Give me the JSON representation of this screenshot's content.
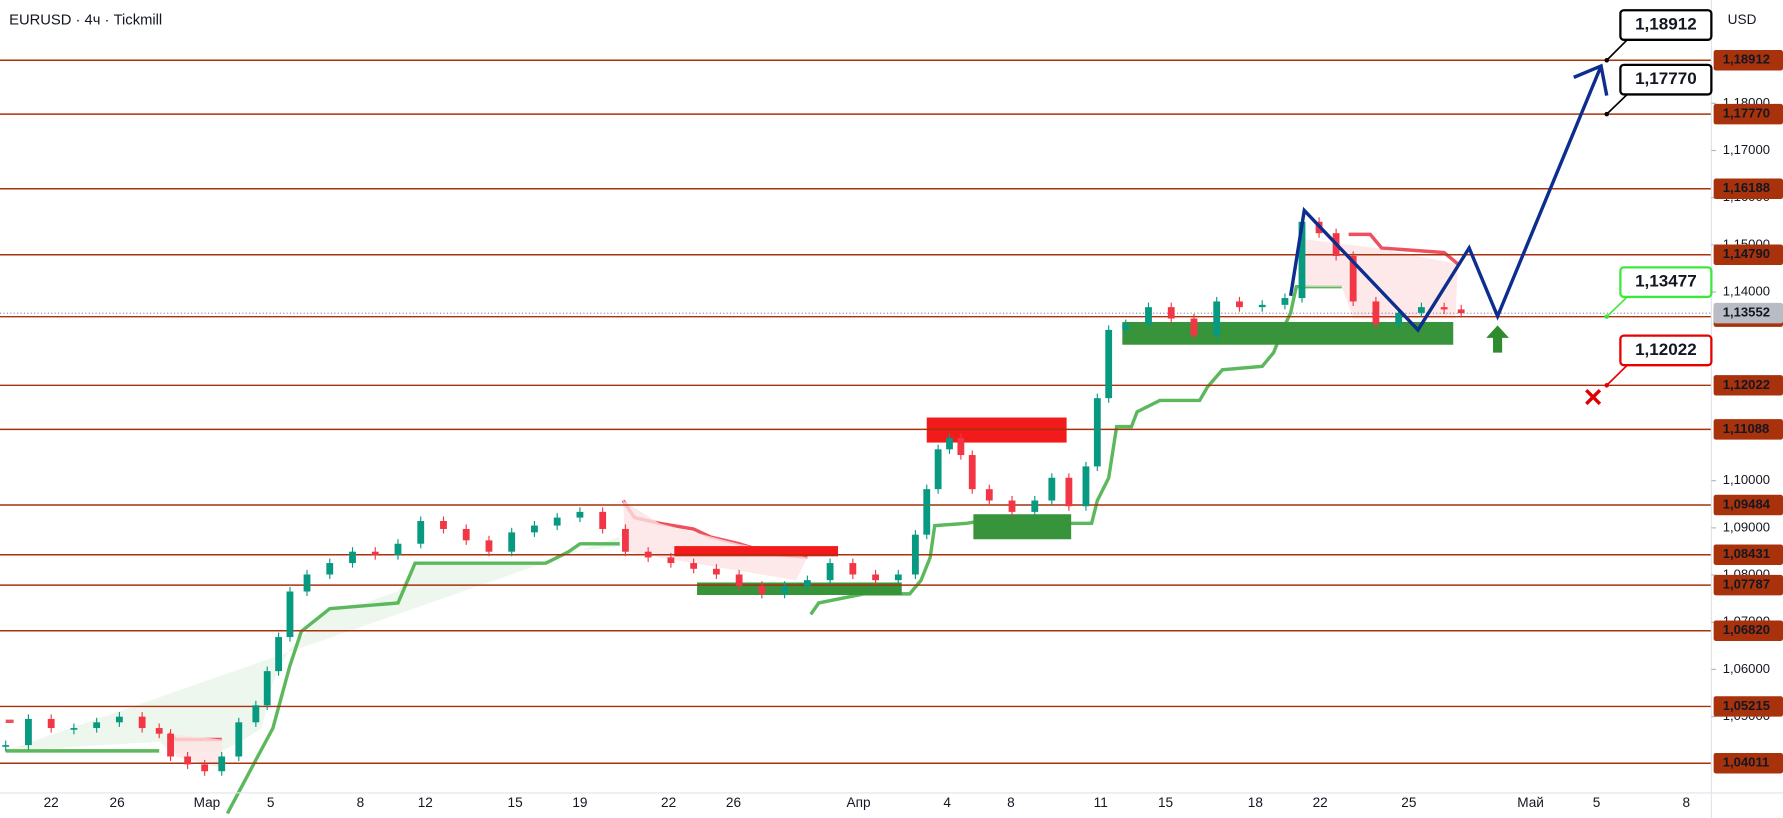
{
  "chart_data": {
    "type": "candlestick",
    "title": "EURUSD · 4ч · Tickmill",
    "currency": "USD",
    "ylim": [
      1.0285,
      1.2019
    ],
    "yticks": [
      {
        "value": 1.18,
        "label": "1,18000"
      },
      {
        "value": 1.17,
        "label": "1,17000"
      },
      {
        "value": 1.16,
        "label": "1,16000"
      },
      {
        "value": 1.15,
        "label": "1,15000"
      },
      {
        "value": 1.14,
        "label": "1,14000"
      },
      {
        "value": 1.1,
        "label": "1,10000"
      },
      {
        "value": 1.09,
        "label": "1,09000"
      },
      {
        "value": 1.08,
        "label": "1,08000"
      },
      {
        "value": 1.07,
        "label": "1,07000"
      },
      {
        "value": 1.06,
        "label": "1,06000"
      },
      {
        "value": 1.05,
        "label": "1,05000"
      }
    ],
    "levels": [
      {
        "value": 1.18912,
        "label": "1,18912"
      },
      {
        "value": 1.1777,
        "label": "1,17770"
      },
      {
        "value": 1.16188,
        "label": "1,16188"
      },
      {
        "value": 1.1479,
        "label": "1,14790"
      },
      {
        "value": 1.13477,
        "label": "1,13477"
      },
      {
        "value": 1.12022,
        "label": "1,12022"
      },
      {
        "value": 1.11088,
        "label": "1,11088"
      },
      {
        "value": 1.09484,
        "label": "1,09484"
      },
      {
        "value": 1.08431,
        "label": "1,08431"
      },
      {
        "value": 1.07787,
        "label": "1,07787"
      },
      {
        "value": 1.0682,
        "label": "1,06820"
      },
      {
        "value": 1.05215,
        "label": "1,05215"
      },
      {
        "value": 1.04011,
        "label": "1,04011"
      }
    ],
    "last_price": {
      "value": 1.13552,
      "label": "1,13552"
    },
    "level_color": "#a8320c",
    "up_color": "#089981",
    "down_color": "#f23645",
    "x_labels": [
      "22",
      "26",
      "Мар",
      "5",
      "8",
      "12",
      "15",
      "19",
      "22",
      "26",
      "Апр",
      "4",
      "8",
      "11",
      "15",
      "18",
      "22",
      "25",
      "Май",
      "5",
      "8"
    ],
    "closes": [
      1.04395,
      1.0495,
      1.04757,
      1.04757,
      1.04878,
      1.04998,
      1.04757,
      1.04637,
      1.04154,
      1.03986,
      1.03841,
      1.04154,
      1.04878,
      1.05239,
      1.05963,
      1.06686,
      1.07651,
      1.08012,
      1.08254,
      1.08495,
      1.08422,
      1.08664,
      1.09146,
      1.08977,
      1.08736,
      1.08495,
      1.08905,
      1.09049,
      1.09218,
      1.09339,
      1.08977,
      1.08495,
      1.08374,
      1.08254,
      1.08133,
      1.08012,
      1.07771,
      1.07603,
      1.07771,
      1.07892,
      1.08254,
      1.08012,
      1.07892,
      1.08012,
      1.08856,
      1.09821,
      1.10665,
      1.10906,
      1.10544,
      1.09821,
      1.0958,
      1.09339,
      1.0958,
      1.10062,
      1.09459,
      1.10303,
      1.1175,
      1.13197,
      1.13318,
      1.13679,
      1.13438,
      1.13076,
      1.138,
      1.13679,
      1.13728,
      1.13872,
      1.15488,
      1.15247,
      1.14764,
      1.138,
      1.13318,
      1.13559,
      1.13679,
      1.13631,
      1.13552
    ]
  }
}
